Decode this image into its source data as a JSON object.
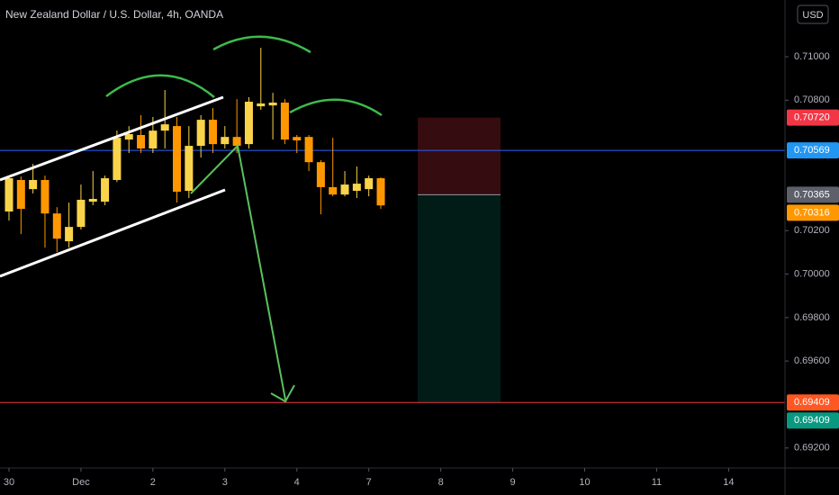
{
  "chart_data": {
    "type": "candlestick",
    "title": "New Zealand Dollar / U.S. Dollar, 4h, OANDA",
    "currency": "USD",
    "up_color": "#f9d44a",
    "down_color": "#ff9800",
    "open": [
      0.70288,
      0.70433,
      0.70391,
      0.70433,
      0.70279,
      0.70151,
      0.70217,
      0.70333,
      0.70333,
      0.70433,
      0.70619,
      0.7064,
      0.70578,
      0.7066,
      0.70681,
      0.70383,
      0.7059,
      0.7071,
      0.70598,
      0.70631,
      0.70598,
      0.70772,
      0.70776,
      0.70789,
      0.70631,
      0.70631,
      0.70515,
      0.704,
      0.70366,
      0.70383,
      0.70391,
      0.70441
    ],
    "high": [
      0.70453,
      0.70449,
      0.70507,
      0.70453,
      0.70308,
      0.70329,
      0.70412,
      0.70474,
      0.70453,
      0.7066,
      0.70681,
      0.70731,
      0.70723,
      0.70847,
      0.70723,
      0.70681,
      0.70731,
      0.70764,
      0.70681,
      0.70805,
      0.70814,
      0.71041,
      0.70834,
      0.70805,
      0.7064,
      0.7064,
      0.70524,
      0.70627,
      0.70474,
      0.70495,
      0.70453,
      0.70445
    ],
    "low": [
      0.70246,
      0.70184,
      0.70371,
      0.70122,
      0.70101,
      0.70122,
      0.70205,
      0.70317,
      0.70317,
      0.70424,
      0.70557,
      0.70557,
      0.70557,
      0.70578,
      0.70329,
      0.7035,
      0.70536,
      0.70557,
      0.70578,
      0.70557,
      0.70578,
      0.70756,
      0.70619,
      0.70598,
      0.70557,
      0.70474,
      0.70275,
      0.70358,
      0.70358,
      0.7035,
      0.70358,
      0.703
    ],
    "close": [
      0.70441,
      0.703,
      0.70433,
      0.70279,
      0.70163,
      0.70217,
      0.70342,
      0.70346,
      0.70441,
      0.70627,
      0.70644,
      0.70578,
      0.7066,
      0.70689,
      0.70379,
      0.7059,
      0.7071,
      0.70598,
      0.70631,
      0.7059,
      0.70793,
      0.70785,
      0.70789,
      0.70619,
      0.70615,
      0.70515,
      0.704,
      0.70366,
      0.70412,
      0.70416,
      0.70441,
      0.70316
    ],
    "xlim": [
      -0.75,
      64.7
    ],
    "xticks": [
      {
        "value": 0,
        "label": "30"
      },
      {
        "value": 6,
        "label": "Dec"
      },
      {
        "value": 12,
        "label": "2"
      },
      {
        "value": 18,
        "label": "3"
      },
      {
        "value": 24,
        "label": "4"
      },
      {
        "value": 30,
        "label": "7"
      },
      {
        "value": 36,
        "label": "8"
      },
      {
        "value": 42,
        "label": "9"
      },
      {
        "value": 48,
        "label": "10"
      },
      {
        "value": 54,
        "label": "11"
      },
      {
        "value": 60,
        "label": "14"
      }
    ],
    "ylim": [
      0.69108,
      0.71261
    ],
    "yticks": [
      {
        "value": 0.71,
        "label": "0.71000"
      },
      {
        "value": 0.708,
        "label": "0.70800"
      },
      {
        "value": 0.702,
        "label": "0.70200"
      },
      {
        "value": 0.7,
        "label": "0.70000"
      },
      {
        "value": 0.698,
        "label": "0.69800"
      },
      {
        "value": 0.696,
        "label": "0.69600"
      },
      {
        "value": 0.692,
        "label": "0.69200"
      }
    ],
    "grid": false,
    "price_lines": [
      {
        "value": 0.70569,
        "color": "#2962ff"
      },
      {
        "value": 0.69409,
        "color": "#f23645"
      }
    ],
    "price_labels": [
      {
        "value": 0.7072,
        "label": "0.70720",
        "color": "#f23645"
      },
      {
        "value": 0.70569,
        "label": "0.70569",
        "color": "#2196f3"
      },
      {
        "value": 0.70365,
        "label": "0.70365",
        "color": "#5d606b"
      },
      {
        "value": 0.70316,
        "label": "0.70316",
        "color": "#ff9800"
      },
      {
        "value": 0.69409,
        "label": "0.69409",
        "color": "#ff5722"
      },
      {
        "value": 0.69409,
        "label": "0.69409",
        "color": "#089981"
      }
    ]
  }
}
